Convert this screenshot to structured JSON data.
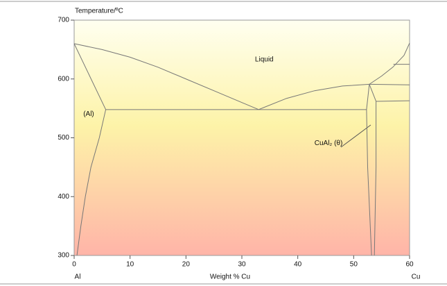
{
  "chart_data": {
    "type": "phase",
    "y_label": "Temperature/ºC",
    "x_label": "Weight %  Cu",
    "x_end_labels": [
      "Al",
      "Cu"
    ],
    "xlim": [
      0,
      60
    ],
    "ylim": [
      300,
      700
    ],
    "xticks": [
      0,
      10,
      20,
      30,
      40,
      50,
      60
    ],
    "yticks": [
      300,
      400,
      500,
      600,
      700
    ],
    "color": "#777777",
    "annotations": [
      {
        "text": "Liquid",
        "x": 34,
        "y": 633
      },
      {
        "text": "(Al)",
        "x": 2.6,
        "y": 540
      },
      {
        "text": "CuAl₂ (θ)",
        "x": 45.5,
        "y": 491
      }
    ],
    "curves": [
      {
        "x": [
          0,
          5,
          10,
          15,
          20,
          25,
          30,
          33
        ],
        "values": [
          660,
          650,
          637,
          620,
          600,
          580,
          560,
          548
        ]
      },
      {
        "x": [
          0,
          5.65
        ],
        "values": [
          660,
          548
        ]
      },
      {
        "x": [
          5.65,
          4.5,
          3,
          2,
          1.2,
          0.5
        ],
        "values": [
          548,
          500,
          450,
          400,
          350,
          300
        ]
      },
      {
        "x": [
          5.65,
          52.3
        ],
        "values": [
          548,
          548
        ]
      },
      {
        "x": [
          33,
          38,
          43,
          48,
          52.8
        ],
        "values": [
          548,
          567,
          580,
          588,
          591
        ]
      },
      {
        "x": [
          52.8,
          52.3,
          52.5,
          53.2
        ],
        "values": [
          591,
          548,
          450,
          300
        ]
      },
      {
        "x": [
          52.8,
          54,
          54,
          53.7
        ],
        "values": [
          591,
          562,
          450,
          300
        ]
      },
      {
        "x": [
          52.8,
          60
        ],
        "values": [
          591,
          590
        ]
      },
      {
        "x": [
          54,
          60
        ],
        "values": [
          562,
          563
        ]
      },
      {
        "x": [
          52.8,
          55,
          57,
          59,
          60
        ],
        "values": [
          591,
          605,
          620,
          640,
          661
        ]
      },
      {
        "x": [
          57.1,
          60
        ],
        "values": [
          625,
          625
        ]
      }
    ]
  }
}
